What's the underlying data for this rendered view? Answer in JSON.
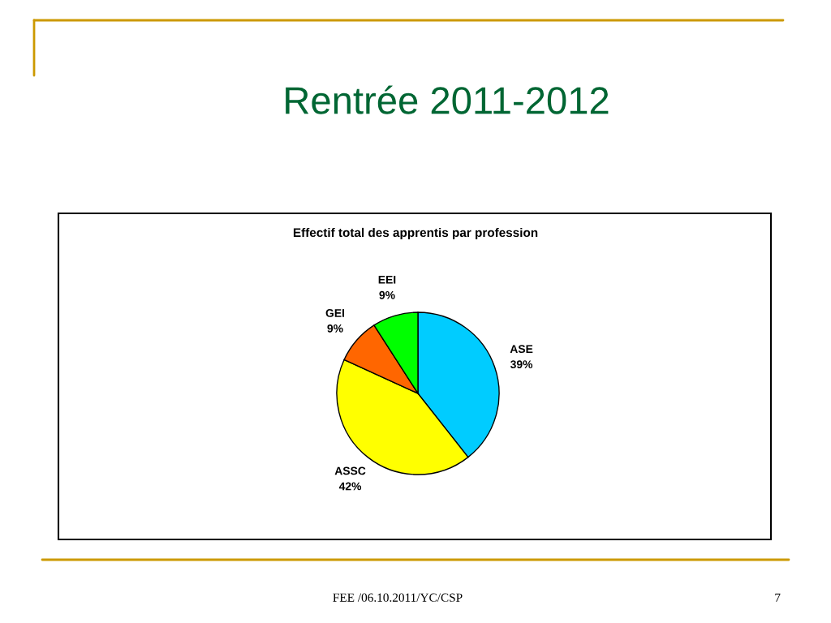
{
  "chart_data": {
    "type": "pie",
    "title": "Rentrée 2011-2012",
    "subtitle": "Effectif total des apprentis par profession",
    "categories": [
      "ASE",
      "ASSC",
      "GEI",
      "EEI"
    ],
    "values": [
      39,
      42,
      9,
      9
    ],
    "colors": [
      "#00ccff",
      "#ffff00",
      "#ff6600",
      "#00ff00"
    ],
    "value_labels": [
      "39%",
      "42%",
      "9%",
      "9%"
    ],
    "annotations": [
      "FEE /06.10.2011/YC/CSP",
      "7"
    ]
  }
}
